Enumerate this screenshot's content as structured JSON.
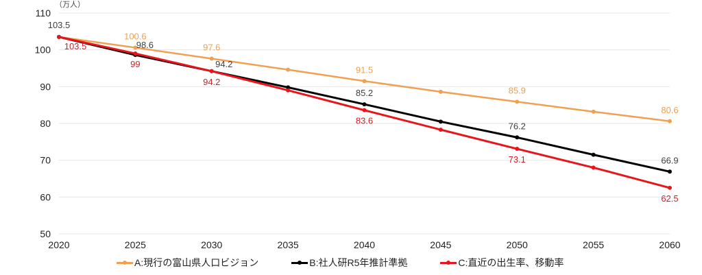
{
  "chart_data": {
    "type": "line",
    "unit_label": "（万人）",
    "x": [
      2020,
      2025,
      2030,
      2035,
      2040,
      2045,
      2050,
      2055,
      2060
    ],
    "ylim": [
      50,
      110
    ],
    "yticks": [
      50,
      60,
      70,
      80,
      90,
      100,
      110
    ],
    "grid": true,
    "legend_position": "bottom",
    "series": [
      {
        "name": "A:現行の富山県人口ビジョン",
        "color": "#F0A050",
        "values": [
          103.5,
          100.6,
          97.6,
          94.6,
          91.5,
          88.6,
          85.9,
          83.2,
          80.6
        ],
        "labels": [
          null,
          "100.6",
          "97.6",
          null,
          "91.5",
          null,
          "85.9",
          null,
          "80.6"
        ]
      },
      {
        "name": "B:社人研R5年推計準拠",
        "color": "#000000",
        "label_color": "#404040",
        "values": [
          103.5,
          98.6,
          94.2,
          89.8,
          85.2,
          80.5,
          76.2,
          71.5,
          66.9
        ],
        "labels": [
          "103.5",
          "98.6",
          "94.2",
          null,
          "85.2",
          null,
          "76.2",
          null,
          "66.9"
        ]
      },
      {
        "name": "C:直近の出生率、移動率",
        "color": "#E8151B",
        "label_color": "#D0202A",
        "values": [
          103.5,
          99.0,
          94.2,
          89.0,
          83.6,
          78.3,
          73.1,
          68.0,
          62.5
        ],
        "labels": [
          "103.5",
          "99",
          "94.2",
          null,
          "83.6",
          null,
          "73.1",
          null,
          "62.5"
        ]
      }
    ]
  }
}
